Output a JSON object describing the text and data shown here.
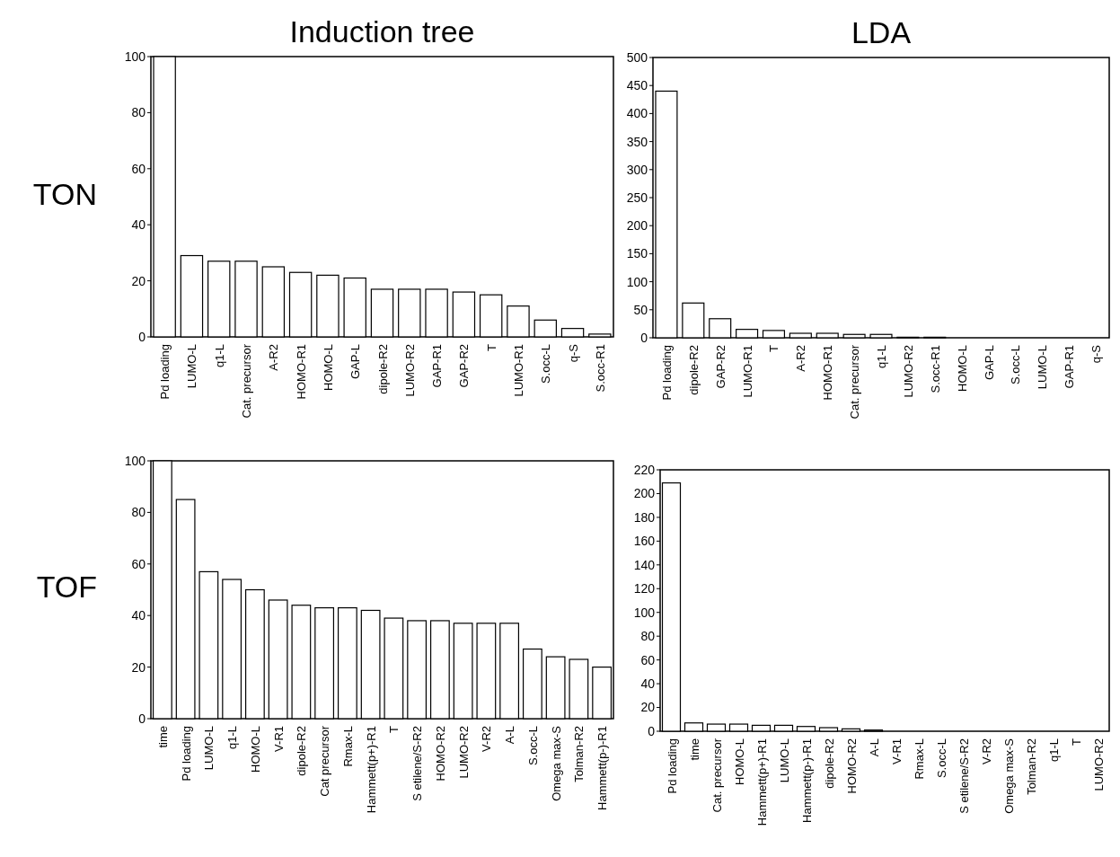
{
  "chart_data": [
    {
      "type": "bar",
      "title": "Induction tree",
      "ylabel": "TON",
      "categories": [
        "Pd loading",
        "LUMO-L",
        "q1-L",
        "Cat. precursor",
        "A-R2",
        "HOMO-R1",
        "HOMO-L",
        "GAP-L",
        "dipole-R2",
        "LUMO-R2",
        "GAP-R1",
        "GAP-R2",
        "T",
        "LUMO-R1",
        "S.occ-L",
        "q-S",
        "S.occ-R1"
      ],
      "values": [
        100,
        29,
        27,
        27,
        25,
        23,
        22,
        21,
        17,
        17,
        17,
        16,
        15,
        11,
        6,
        3,
        1
      ],
      "color": "#ffffff",
      "ylim": [
        0,
        100
      ],
      "yticks": [
        0,
        20,
        40,
        60,
        80,
        100
      ]
    },
    {
      "type": "bar",
      "title": "LDA",
      "categories": [
        "Pd loading",
        "dipole-R2",
        "GAP-R2",
        "LUMO-R1",
        "T",
        "A-R2",
        "HOMO-R1",
        "Cat. precursor",
        "q1-L",
        "LUMO-R2",
        "S.occ-R1",
        "HOMO-L",
        "GAP-L",
        "S.occ-L",
        "LUMO-L",
        "GAP-R1",
        "q-S"
      ],
      "values": [
        440,
        62,
        34,
        15,
        13,
        8,
        8,
        6,
        6,
        1,
        1,
        0,
        0,
        0,
        0,
        0,
        0
      ],
      "color": "#ffffff",
      "ylim": [
        0,
        500
      ],
      "yticks": [
        0,
        50,
        100,
        150,
        200,
        250,
        300,
        350,
        400,
        450,
        500
      ]
    },
    {
      "type": "bar",
      "ylabel": "TOF",
      "categories": [
        "time",
        "Pd loading",
        "LUMO-L",
        "q1-L",
        "HOMO-L",
        "V-R1",
        "dipole-R2",
        "Cat precursor",
        "Rmax-L",
        "Hammett(p+)-R1",
        "T",
        "S etilene/S-R2",
        "HOMO-R2",
        "LUMO-R2",
        "V-R2",
        "A-L",
        "S.occ-L",
        "Omega max-S",
        "Tolman-R2",
        "Hammett(p-)-R1"
      ],
      "values": [
        100,
        85,
        57,
        54,
        50,
        46,
        44,
        43,
        43,
        42,
        39,
        38,
        38,
        37,
        37,
        37,
        27,
        24,
        23,
        20
      ],
      "color": "#ffffff",
      "ylim": [
        0,
        100
      ],
      "yticks": [
        0,
        20,
        40,
        60,
        80,
        100
      ]
    },
    {
      "type": "bar",
      "categories": [
        "Pd loading",
        "time",
        "Cat. precursor",
        "HOMO-L",
        "Hammett(p+)-R1",
        "LUMO-L",
        "Hammett(p-)-R1",
        "dipole-R2",
        "HOMO-R2",
        "A-L",
        "V-R1",
        "Rmax-L",
        "S.occ-L",
        "S etilene/S-R2",
        "V-R2",
        "Omega max-S",
        "Tolman-R2",
        "q1-L",
        "T",
        "LUMO-R2"
      ],
      "values": [
        209,
        7,
        6,
        6,
        5,
        5,
        4,
        3,
        2,
        1,
        0,
        0,
        0,
        0,
        0,
        0,
        0,
        0,
        0,
        0
      ],
      "color": "#ffffff",
      "ylim": [
        0,
        220
      ],
      "yticks": [
        0,
        20,
        40,
        60,
        80,
        100,
        120,
        140,
        160,
        180,
        200,
        220
      ]
    }
  ]
}
